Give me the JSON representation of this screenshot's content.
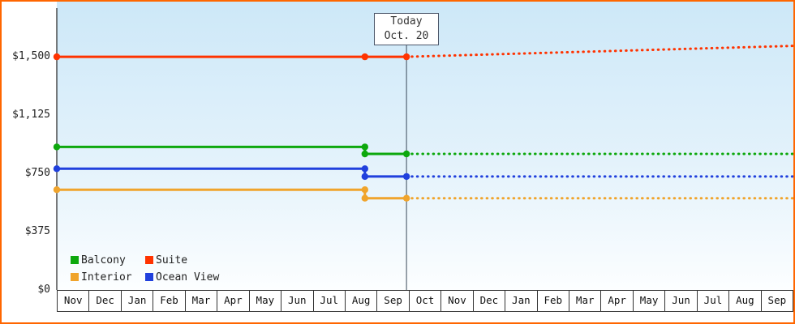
{
  "chart_data": {
    "type": "line",
    "x_months": [
      "Nov",
      "Dec",
      "Jan",
      "Feb",
      "Mar",
      "Apr",
      "May",
      "Jun",
      "Jul",
      "Aug",
      "Sep",
      "Oct",
      "Nov",
      "Dec",
      "Jan",
      "Feb",
      "Mar",
      "Apr",
      "May",
      "Jun",
      "Jul",
      "Aug",
      "Sep"
    ],
    "y_ticks": [
      0,
      375,
      750,
      1125,
      1500
    ],
    "y_tick_labels": [
      "$0",
      "$375",
      "$750",
      "$1,125",
      "$1,500"
    ],
    "ylim": [
      0,
      1792
    ],
    "today": {
      "label": "Today",
      "date": "Oct. 20",
      "x": 10.92
    },
    "legend_order": [
      "Balcony",
      "Suite",
      "Interior",
      "Ocean View"
    ],
    "series": [
      {
        "name": "Suite",
        "color": "#ff3300",
        "solid": [
          [
            0,
            1500
          ],
          [
            10.92,
            1500
          ]
        ],
        "dashed": [
          [
            10.92,
            1500
          ],
          [
            23,
            1570
          ]
        ],
        "markers": [
          [
            0,
            1500
          ],
          [
            9.62,
            1500
          ],
          [
            10.92,
            1500
          ]
        ]
      },
      {
        "name": "Balcony",
        "color": "#0da80d",
        "solid": [
          [
            0,
            920
          ],
          [
            9.62,
            920
          ],
          [
            9.62,
            875
          ],
          [
            10.92,
            875
          ]
        ],
        "dashed": [
          [
            10.92,
            875
          ],
          [
            23,
            875
          ]
        ],
        "markers": [
          [
            0,
            920
          ],
          [
            9.62,
            920
          ],
          [
            9.62,
            875
          ],
          [
            10.92,
            875
          ]
        ]
      },
      {
        "name": "Ocean View",
        "color": "#2040dd",
        "solid": [
          [
            0,
            780
          ],
          [
            9.62,
            780
          ],
          [
            9.62,
            730
          ],
          [
            10.92,
            730
          ]
        ],
        "dashed": [
          [
            10.92,
            730
          ],
          [
            23,
            730
          ]
        ],
        "markers": [
          [
            0,
            780
          ],
          [
            9.62,
            780
          ],
          [
            9.62,
            730
          ],
          [
            10.92,
            730
          ]
        ]
      },
      {
        "name": "Interior",
        "color": "#f0a42c",
        "solid": [
          [
            0,
            645
          ],
          [
            9.62,
            645
          ],
          [
            9.62,
            590
          ],
          [
            10.92,
            590
          ]
        ],
        "dashed": [
          [
            10.92,
            590
          ],
          [
            23,
            590
          ]
        ],
        "markers": [
          [
            0,
            645
          ],
          [
            9.62,
            645
          ],
          [
            9.62,
            590
          ],
          [
            10.92,
            590
          ]
        ]
      }
    ],
    "colors": {
      "frame_border": "#ff6600",
      "axis": "#222222",
      "today_line": "#3a4a5a",
      "plot_bg_top": "#cde8f8",
      "plot_bg_bottom": "#fcfeff"
    }
  }
}
